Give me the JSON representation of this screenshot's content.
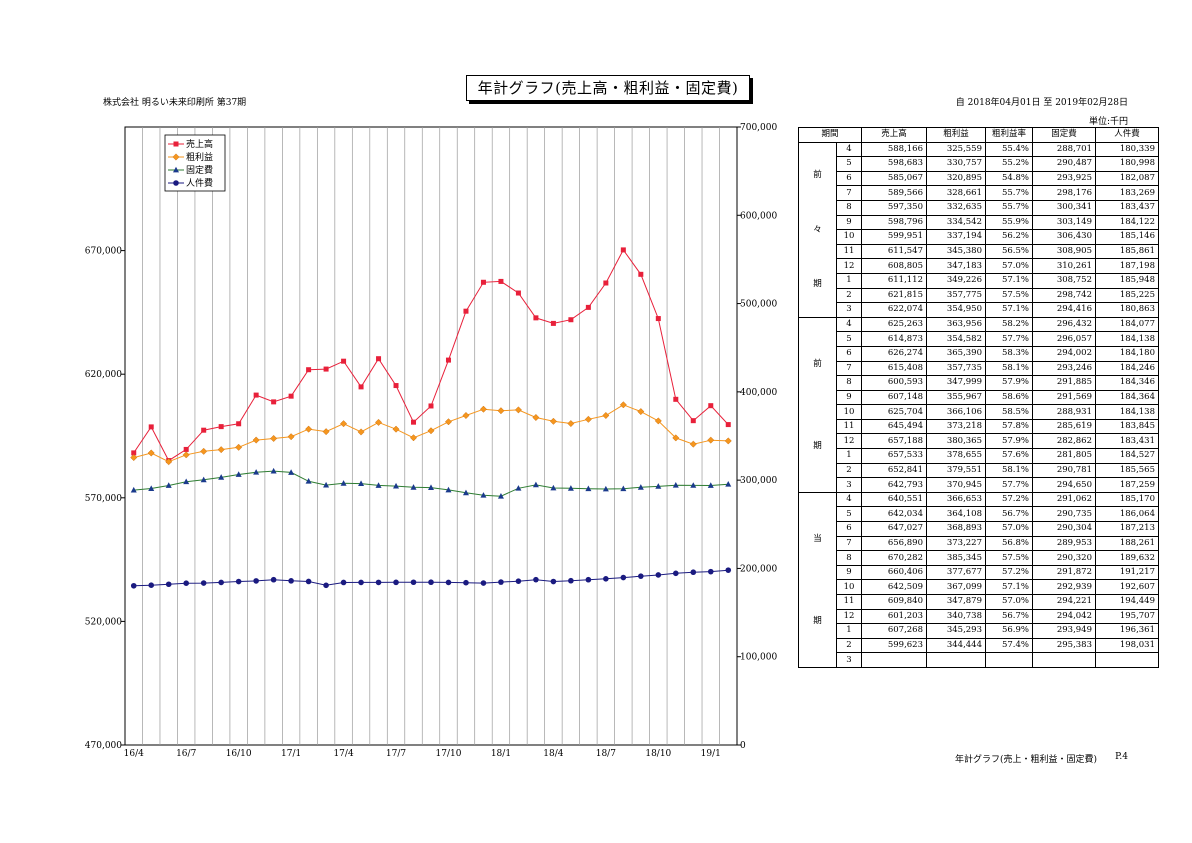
{
  "header": {
    "title": "年計グラフ(売上高・粗利益・固定費)",
    "company": "株式会社 明るい未来印刷所 第37期",
    "period": "自 2018年04月01日 至 2019年02月28日",
    "unit": "単位:千円"
  },
  "footer": {
    "text": "年計グラフ(売上・粗利益・固定費)",
    "page": "P.4"
  },
  "colors": {
    "sales": "#e8203a",
    "gross": "#f5961e",
    "fixed": "#1a3a8c",
    "labor": "#1a1a80",
    "fixed_line": "#2e7d32"
  },
  "table": {
    "headers": [
      "期間",
      "売上高",
      "粗利益",
      "粗利益率",
      "固定費",
      "人件費"
    ],
    "groups": [
      {
        "label": [
          "前",
          "々",
          "期"
        ],
        "rows": [
          [
            "4",
            "588,166",
            "325,559",
            "55.4%",
            "288,701",
            "180,339"
          ],
          [
            "5",
            "598,683",
            "330,757",
            "55.2%",
            "290,487",
            "180,998"
          ],
          [
            "6",
            "585,067",
            "320,895",
            "54.8%",
            "293,925",
            "182,087"
          ],
          [
            "7",
            "589,566",
            "328,661",
            "55.7%",
            "298,176",
            "183,269"
          ],
          [
            "8",
            "597,350",
            "332,635",
            "55.7%",
            "300,341",
            "183,437"
          ],
          [
            "9",
            "598,796",
            "334,542",
            "55.9%",
            "303,149",
            "184,122"
          ],
          [
            "10",
            "599,951",
            "337,194",
            "56.2%",
            "306,430",
            "185,146"
          ],
          [
            "11",
            "611,547",
            "345,380",
            "56.5%",
            "308,905",
            "185,861"
          ],
          [
            "12",
            "608,805",
            "347,183",
            "57.0%",
            "310,261",
            "187,198"
          ],
          [
            "1",
            "611,112",
            "349,226",
            "57.1%",
            "308,752",
            "185,948"
          ],
          [
            "2",
            "621,815",
            "357,775",
            "57.5%",
            "298,742",
            "185,225"
          ],
          [
            "3",
            "622,074",
            "354,950",
            "57.1%",
            "294,416",
            "180,863"
          ]
        ]
      },
      {
        "label": [
          "前",
          "期"
        ],
        "rows": [
          [
            "4",
            "625,263",
            "363,956",
            "58.2%",
            "296,432",
            "184,077"
          ],
          [
            "5",
            "614,873",
            "354,582",
            "57.7%",
            "296,057",
            "184,138"
          ],
          [
            "6",
            "626,274",
            "365,390",
            "58.3%",
            "294,002",
            "184,180"
          ],
          [
            "7",
            "615,408",
            "357,735",
            "58.1%",
            "293,246",
            "184,246"
          ],
          [
            "8",
            "600,593",
            "347,999",
            "57.9%",
            "291,885",
            "184,346"
          ],
          [
            "9",
            "607,148",
            "355,967",
            "58.6%",
            "291,569",
            "184,364"
          ],
          [
            "10",
            "625,704",
            "366,106",
            "58.5%",
            "288,931",
            "184,138"
          ],
          [
            "11",
            "645,494",
            "373,218",
            "57.8%",
            "285,619",
            "183,845"
          ],
          [
            "12",
            "657,188",
            "380,365",
            "57.9%",
            "282,862",
            "183,431"
          ],
          [
            "1",
            "657,533",
            "378,655",
            "57.6%",
            "281,805",
            "184,527"
          ],
          [
            "2",
            "652,841",
            "379,551",
            "58.1%",
            "290,781",
            "185,565"
          ],
          [
            "3",
            "642,793",
            "370,945",
            "57.7%",
            "294,650",
            "187,259"
          ]
        ]
      },
      {
        "label": [
          "当",
          "期"
        ],
        "rows": [
          [
            "4",
            "640,551",
            "366,653",
            "57.2%",
            "291,062",
            "185,170"
          ],
          [
            "5",
            "642,034",
            "364,108",
            "56.7%",
            "290,735",
            "186,064"
          ],
          [
            "6",
            "647,027",
            "368,893",
            "57.0%",
            "290,304",
            "187,213"
          ],
          [
            "7",
            "656,890",
            "373,227",
            "56.8%",
            "289,953",
            "188,261"
          ],
          [
            "8",
            "670,282",
            "385,345",
            "57.5%",
            "290,320",
            "189,632"
          ],
          [
            "9",
            "660,406",
            "377,677",
            "57.2%",
            "291,872",
            "191,217"
          ],
          [
            "10",
            "642,509",
            "367,099",
            "57.1%",
            "292,939",
            "192,607"
          ],
          [
            "11",
            "609,840",
            "347,879",
            "57.0%",
            "294,221",
            "194,449"
          ],
          [
            "12",
            "601,203",
            "340,738",
            "56.7%",
            "294,042",
            "195,707"
          ],
          [
            "1",
            "607,268",
            "345,293",
            "56.9%",
            "293,949",
            "196,361"
          ],
          [
            "2",
            "599,623",
            "344,444",
            "57.4%",
            "295,383",
            "198,031"
          ],
          [
            "3",
            "",
            "",
            "",
            "",
            ""
          ]
        ]
      }
    ]
  },
  "chart_data": {
    "type": "line",
    "x": [
      "16/4",
      "16/5",
      "16/6",
      "16/7",
      "16/8",
      "16/9",
      "16/10",
      "16/11",
      "16/12",
      "17/1",
      "17/2",
      "17/3",
      "17/4",
      "17/5",
      "17/6",
      "17/7",
      "17/8",
      "17/9",
      "17/10",
      "17/11",
      "17/12",
      "18/1",
      "18/2",
      "18/3",
      "18/4",
      "18/5",
      "18/6",
      "18/7",
      "18/8",
      "18/9",
      "18/10",
      "18/11",
      "18/12",
      "19/1",
      "19/2"
    ],
    "x_tick_labels": [
      "16/4",
      "16/7",
      "16/10",
      "17/1",
      "17/4",
      "17/7",
      "17/10",
      "18/1",
      "18/4",
      "18/7",
      "18/10",
      "19/1"
    ],
    "left_axis": {
      "ylim": [
        470000,
        720000
      ],
      "ticks": [
        "470,000",
        "520,000",
        "570,000",
        "620,000",
        "670,000"
      ],
      "tick_values": [
        470000,
        520000,
        570000,
        620000,
        670000
      ]
    },
    "right_axis": {
      "ylim": [
        0,
        700000
      ],
      "ticks": [
        "0",
        "100,000",
        "200,000",
        "300,000",
        "400,000",
        "500,000",
        "600,000",
        "700,000"
      ],
      "tick_values": [
        0,
        100000,
        200000,
        300000,
        400000,
        500000,
        600000,
        700000
      ]
    },
    "legend_position": "top-left",
    "series": [
      {
        "name": "売上高",
        "axis": "left",
        "marker": "square",
        "values": [
          588166,
          598683,
          585067,
          589566,
          597350,
          598796,
          599951,
          611547,
          608805,
          611112,
          621815,
          622074,
          625263,
          614873,
          626274,
          615408,
          600593,
          607148,
          625704,
          645494,
          657188,
          657533,
          652841,
          642793,
          640551,
          642034,
          647027,
          656890,
          670282,
          660406,
          642509,
          609840,
          601203,
          607268,
          599623
        ]
      },
      {
        "name": "粗利益",
        "axis": "right",
        "marker": "diamond",
        "values": [
          325559,
          330757,
          320895,
          328661,
          332635,
          334542,
          337194,
          345380,
          347183,
          349226,
          357775,
          354950,
          363956,
          354582,
          365390,
          357735,
          347999,
          355967,
          366106,
          373218,
          380365,
          378655,
          379551,
          370945,
          366653,
          364108,
          368893,
          373227,
          385345,
          377677,
          367099,
          347879,
          340738,
          345293,
          344444
        ]
      },
      {
        "name": "固定費",
        "axis": "right",
        "marker": "triangle",
        "values": [
          288701,
          290487,
          293925,
          298176,
          300341,
          303149,
          306430,
          308905,
          310261,
          308752,
          298742,
          294416,
          296432,
          296057,
          294002,
          293246,
          291885,
          291569,
          288931,
          285619,
          282862,
          281805,
          290781,
          294650,
          291062,
          290735,
          290304,
          289953,
          290320,
          291872,
          292939,
          294221,
          294042,
          293949,
          295383
        ]
      },
      {
        "name": "人件費",
        "axis": "right",
        "marker": "circle",
        "values": [
          180339,
          180998,
          182087,
          183269,
          183437,
          184122,
          185146,
          185861,
          187198,
          185948,
          185225,
          180863,
          184077,
          184138,
          184180,
          184246,
          184346,
          184364,
          184138,
          183845,
          183431,
          184527,
          185565,
          187259,
          185170,
          186064,
          187213,
          188261,
          189632,
          191217,
          192607,
          194449,
          195707,
          196361,
          198031
        ]
      }
    ]
  }
}
